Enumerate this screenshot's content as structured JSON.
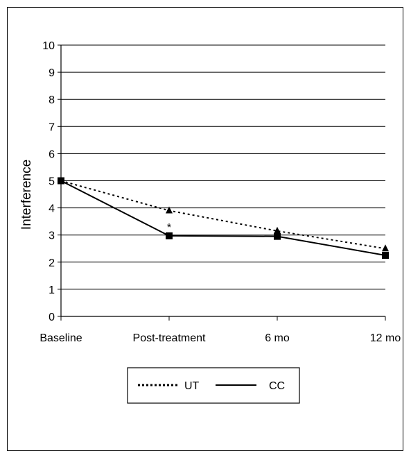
{
  "chart_data": {
    "type": "line",
    "categories": [
      "Baseline",
      "Post-treatment",
      "6 mo",
      "12 mo"
    ],
    "ylabel": "Interference",
    "ylim": [
      0,
      10
    ],
    "yticks": [
      "0",
      "1",
      "2",
      "3",
      "4",
      "5",
      "6",
      "7",
      "8",
      "9",
      "10"
    ],
    "grid": true,
    "legend_position": "bottom-center",
    "series": [
      {
        "name": "UT",
        "values": [
          5.0,
          3.9,
          3.15,
          2.5
        ],
        "style": "dotted",
        "marker": "triangle",
        "color": "#000000"
      },
      {
        "name": "CC",
        "values": [
          5.0,
          2.97,
          2.95,
          2.25
        ],
        "style": "solid",
        "marker": "square",
        "color": "#000000"
      }
    ],
    "annotations": [
      {
        "text": "*",
        "category": "Post-treatment",
        "y": 3.35
      }
    ]
  }
}
